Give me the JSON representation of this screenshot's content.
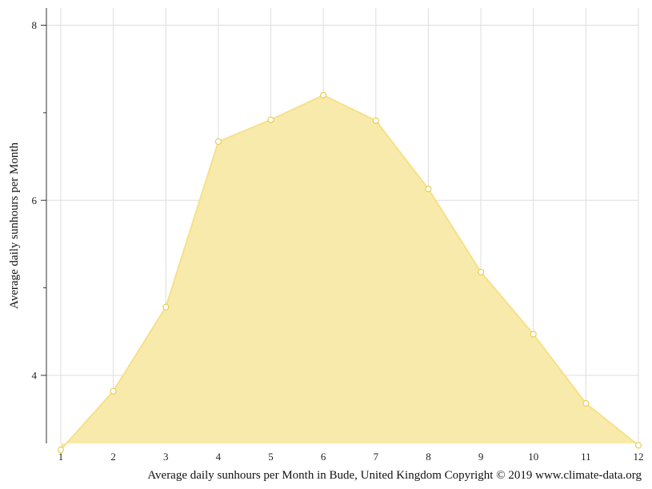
{
  "chart_data": {
    "type": "area",
    "title": "",
    "ylabel": "Average daily sunhours per Month",
    "xlabel": "",
    "caption": "Average daily sunhours per Month in Bude, United Kingdom Copyright © 2019 www.climate-data.org",
    "x": [
      1,
      2,
      3,
      4,
      5,
      6,
      7,
      8,
      9,
      10,
      11,
      12
    ],
    "y_ticks": [
      4,
      6,
      8
    ],
    "ylim": [
      3.15,
      8.2
    ],
    "grid": true,
    "series": [
      {
        "values": [
          3.15,
          3.82,
          4.78,
          6.67,
          6.92,
          7.2,
          6.91,
          6.13,
          5.18,
          4.47,
          3.68,
          3.2
        ]
      }
    ],
    "colors": {
      "fill": "#f8eaaa",
      "line": "#f7e08a",
      "marker_stroke": "#e8cf55",
      "grid": "#dddddd",
      "axis": "#333333"
    }
  }
}
